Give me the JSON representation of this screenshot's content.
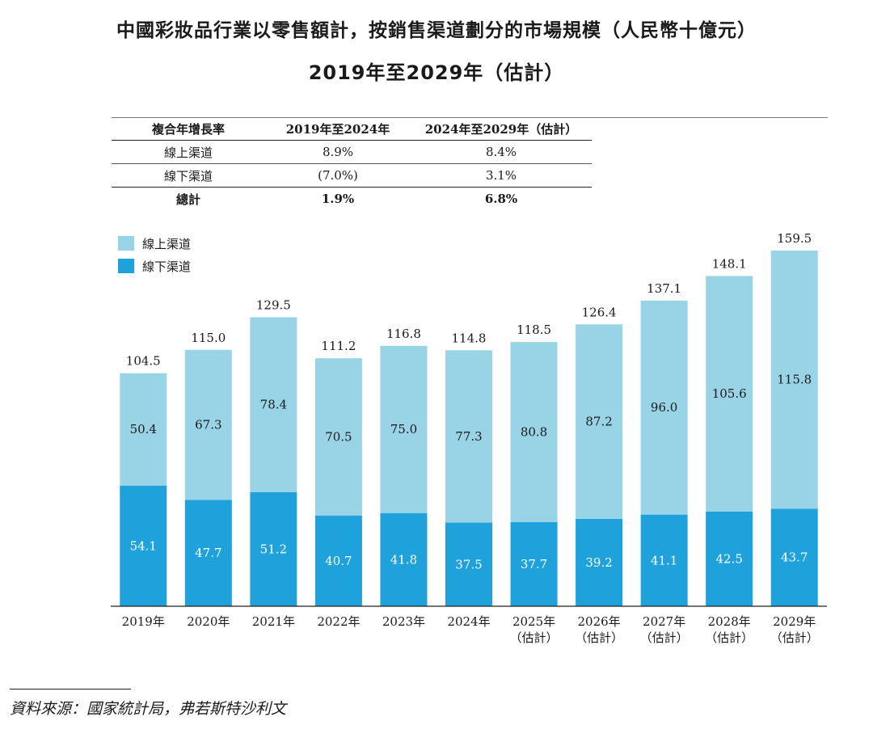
{
  "title_line1": "中國彩妝品行業以零售額計，按銷售渠道劃分的市場規模（人民幣十億元）",
  "title_line2": "2019年至2029年（估計）",
  "cagr_table": {
    "headers": [
      "複合年增長率",
      "2019年至2024年",
      "2024年至2029年（估計）"
    ],
    "rows": [
      [
        "線上渠道",
        "8.9%",
        "8.4%"
      ],
      [
        "線下渠道",
        "(7.0%)",
        "3.1%"
      ],
      [
        "總計",
        "1.9%",
        "6.8%"
      ]
    ]
  },
  "colors": {
    "online": "#99d3e6",
    "offline": "#1fa2dc"
  },
  "chart_data": {
    "type": "bar",
    "stacked": true,
    "categories": [
      "2019年",
      "2020年",
      "2021年",
      "2022年",
      "2023年",
      "2024年",
      "2025年\n（估計）",
      "2026年\n（估計）",
      "2027年\n（估計）",
      "2028年\n（估計）",
      "2029年\n（估計）"
    ],
    "series": [
      {
        "name": "線下渠道",
        "values": [
          54.1,
          47.7,
          51.2,
          40.7,
          41.8,
          37.5,
          37.7,
          39.2,
          41.1,
          42.5,
          43.7
        ]
      },
      {
        "name": "線上渠道",
        "values": [
          50.4,
          67.3,
          78.4,
          70.5,
          75.0,
          77.3,
          80.8,
          87.2,
          96.0,
          105.6,
          115.8
        ]
      }
    ],
    "totals": [
      "104.5",
      "115.0",
      "129.5",
      "111.2",
      "116.8",
      "114.8",
      "118.5",
      "126.4",
      "137.1",
      "148.1",
      "159.5"
    ],
    "offline_labels": [
      "54.1",
      "47.7",
      "51.2",
      "40.7",
      "41.8",
      "37.5",
      "37.7",
      "39.2",
      "41.1",
      "42.5",
      "43.7"
    ],
    "online_labels": [
      "50.4",
      "67.3",
      "78.4",
      "70.5",
      "75.0",
      "77.3",
      "80.8",
      "87.2",
      "96.0",
      "105.6",
      "115.8"
    ],
    "legend": [
      "線上渠道",
      "線下渠道"
    ],
    "legend_position": "top-left",
    "ylim": [
      0,
      159.5
    ],
    "grid": false
  },
  "source": "資料來源：國家統計局，弗若斯特沙利文"
}
